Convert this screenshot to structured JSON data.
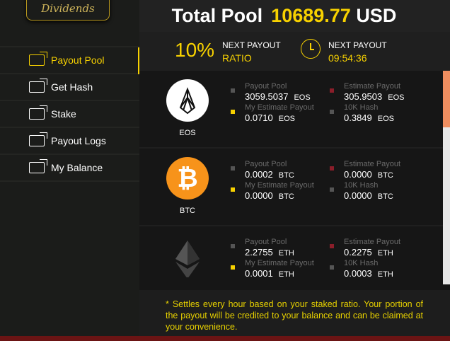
{
  "logo": {
    "text": "Dividends"
  },
  "sidebar": {
    "items": [
      {
        "label": "Payout Pool",
        "icon": "payout-pool-icon",
        "active": true
      },
      {
        "label": "Get Hash",
        "icon": "get-hash-icon"
      },
      {
        "label": "Stake",
        "icon": "stake-icon"
      },
      {
        "label": "Payout Logs",
        "icon": "payout-logs-icon"
      },
      {
        "label": "My Balance",
        "icon": "my-balance-icon"
      }
    ]
  },
  "header": {
    "title": "Total Pool",
    "amount": "10689.77",
    "currency": "USD"
  },
  "stats": {
    "ratio": "10%",
    "ratio_label": "NEXT PAYOUT",
    "ratio_sub": "RATIO",
    "timer_label": "NEXT PAYOUT",
    "timer": "09:54:36"
  },
  "labels": {
    "pool": "Payout Pool",
    "estimate": "Estimate Payout",
    "my": "My Estimate Payout",
    "hash": "10K Hash"
  },
  "colors": {
    "accent": "#f7d100",
    "estimate": "#8b1e2a",
    "neutral": "#555555"
  },
  "coins": [
    {
      "name": "EOS",
      "unit": "EOS",
      "pool": "3059.5037",
      "estimate": "305.9503",
      "my": "0.0710",
      "hash": "0.3849"
    },
    {
      "name": "BTC",
      "unit": "BTC",
      "pool": "0.0002",
      "estimate": "0.0000",
      "my": "0.0000",
      "hash": "0.0000"
    },
    {
      "name": "",
      "unit": "ETH",
      "pool": "2.2755",
      "estimate": "0.2275",
      "my": "0.0001",
      "hash": "0.0003"
    }
  ],
  "note": "* Settles every hour based on your staked ratio. Your portion of the payout will be credited to your balance and can be claimed at your convenience."
}
